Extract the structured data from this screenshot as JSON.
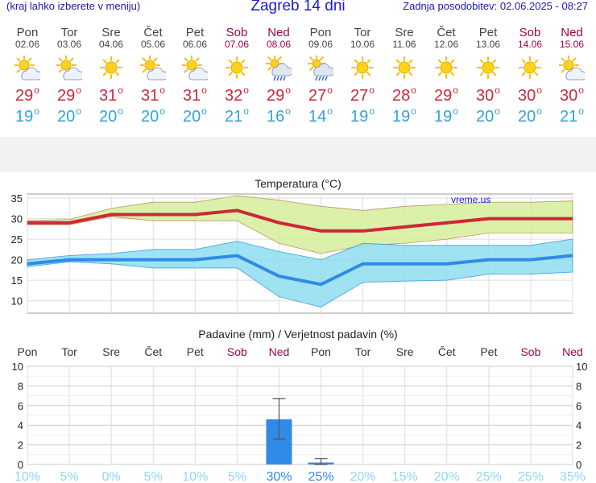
{
  "header": {
    "menu_link": "(kraj lahko izberete v meniju)",
    "title": "Zagreb 14 dni",
    "updated": "Zadnja posodobitev: 02.06.2025 - 08:27"
  },
  "days": [
    {
      "name": "Pon",
      "date": "02.06",
      "icon": "sun-cloud-icon",
      "max": "29",
      "min": "19",
      "weekend": false
    },
    {
      "name": "Tor",
      "date": "03.06",
      "icon": "sun-cloud-icon",
      "max": "29",
      "min": "20",
      "weekend": false
    },
    {
      "name": "Sre",
      "date": "04.06",
      "icon": "sun-icon",
      "max": "31",
      "min": "20",
      "weekend": false
    },
    {
      "name": "Čet",
      "date": "05.06",
      "icon": "sun-cloud-icon",
      "max": "31",
      "min": "20",
      "weekend": false
    },
    {
      "name": "Pet",
      "date": "06.06",
      "icon": "sun-cloud-icon",
      "max": "31",
      "min": "20",
      "weekend": false
    },
    {
      "name": "Sob",
      "date": "07.06",
      "icon": "sun-icon",
      "max": "32",
      "min": "21",
      "weekend": true
    },
    {
      "name": "Ned",
      "date": "08.06",
      "icon": "sun-cloud-rain-icon",
      "max": "29",
      "min": "16",
      "weekend": true
    },
    {
      "name": "Pon",
      "date": "09.06",
      "icon": "sun-cloud-rain-icon",
      "max": "27",
      "min": "14",
      "weekend": false
    },
    {
      "name": "Tor",
      "date": "10.06",
      "icon": "sun-icon",
      "max": "27",
      "min": "19",
      "weekend": false
    },
    {
      "name": "Sre",
      "date": "11.06",
      "icon": "sun-icon",
      "max": "28",
      "min": "19",
      "weekend": false
    },
    {
      "name": "Čet",
      "date": "12.06",
      "icon": "sun-icon",
      "max": "29",
      "min": "19",
      "weekend": false
    },
    {
      "name": "Pet",
      "date": "13.06",
      "icon": "sun-icon",
      "max": "30",
      "min": "20",
      "weekend": false
    },
    {
      "name": "Sob",
      "date": "14.06",
      "icon": "sun-icon",
      "max": "30",
      "min": "20",
      "weekend": true
    },
    {
      "name": "Ned",
      "date": "15.06",
      "icon": "sun-cloud-icon",
      "max": "30",
      "min": "21",
      "weekend": true
    }
  ],
  "degree_symbol": "o",
  "colors": {
    "max": "#d0263a",
    "min": "#33a3d8",
    "weekend": "#a0004a",
    "bar": "#2f8be6"
  },
  "chart_data": [
    {
      "type": "line",
      "title": "Temperatura (°C)",
      "watermark": "vreme.us",
      "ylim": [
        7,
        36
      ],
      "yticks": [
        10,
        15,
        20,
        25,
        30,
        35
      ],
      "x": [
        0,
        1,
        2,
        3,
        4,
        5,
        6,
        7,
        8,
        9,
        10,
        11,
        12,
        13
      ],
      "series": [
        {
          "values": [
            29,
            29,
            31,
            31,
            31,
            32,
            29,
            27,
            27,
            28,
            29,
            30,
            30,
            30
          ]
        },
        {
          "values": [
            19,
            20,
            20,
            20,
            20,
            21,
            16,
            14,
            19,
            19,
            19,
            20,
            20,
            21
          ]
        }
      ],
      "max_band_upper": [
        29.5,
        29.8,
        32.5,
        34,
        34,
        35.6,
        34.5,
        33,
        32,
        33,
        33.5,
        34,
        34,
        34.3
      ],
      "max_band_lower": [
        28.5,
        28.5,
        30.5,
        29.5,
        29.5,
        29.5,
        24,
        21.5,
        23.5,
        24,
        25,
        26.5,
        26.5,
        26.5
      ],
      "min_band_upper": [
        20,
        21,
        21.5,
        22.5,
        22.5,
        24.5,
        22,
        20,
        24,
        23.5,
        23.5,
        23.5,
        23.5,
        25
      ],
      "min_band_lower": [
        18.3,
        19.5,
        19,
        18,
        18,
        18,
        11,
        8.5,
        14.5,
        14.8,
        15,
        16.5,
        16.5,
        17
      ]
    },
    {
      "type": "bar",
      "title": "Padavine (mm) / Verjetnost padavin (%)",
      "categories": [
        "Pon",
        "Tor",
        "Sre",
        "Čet",
        "Pet",
        "Sob",
        "Ned",
        "Pon",
        "Tor",
        "Sre",
        "Čet",
        "Pet",
        "Sob",
        "Ned"
      ],
      "values": [
        0,
        0,
        0,
        0,
        0,
        0,
        4.6,
        0.2,
        0,
        0,
        0,
        0,
        0,
        0
      ],
      "err_low": [
        0,
        0,
        0,
        0,
        0,
        0,
        2.6,
        0,
        0,
        0,
        0,
        0,
        0,
        0
      ],
      "err_high": [
        0,
        0,
        0,
        0,
        0,
        0,
        6.7,
        0.6,
        0,
        0,
        0,
        0,
        0,
        0
      ],
      "ylim": [
        0,
        10
      ],
      "yticks": [
        0,
        2,
        4,
        6,
        8,
        10
      ],
      "probabilities": [
        "10%",
        "5%",
        "0%",
        "5%",
        "10%",
        "5%",
        "30%",
        "25%",
        "20%",
        "15%",
        "20%",
        "25%",
        "25%",
        "35%"
      ]
    }
  ]
}
